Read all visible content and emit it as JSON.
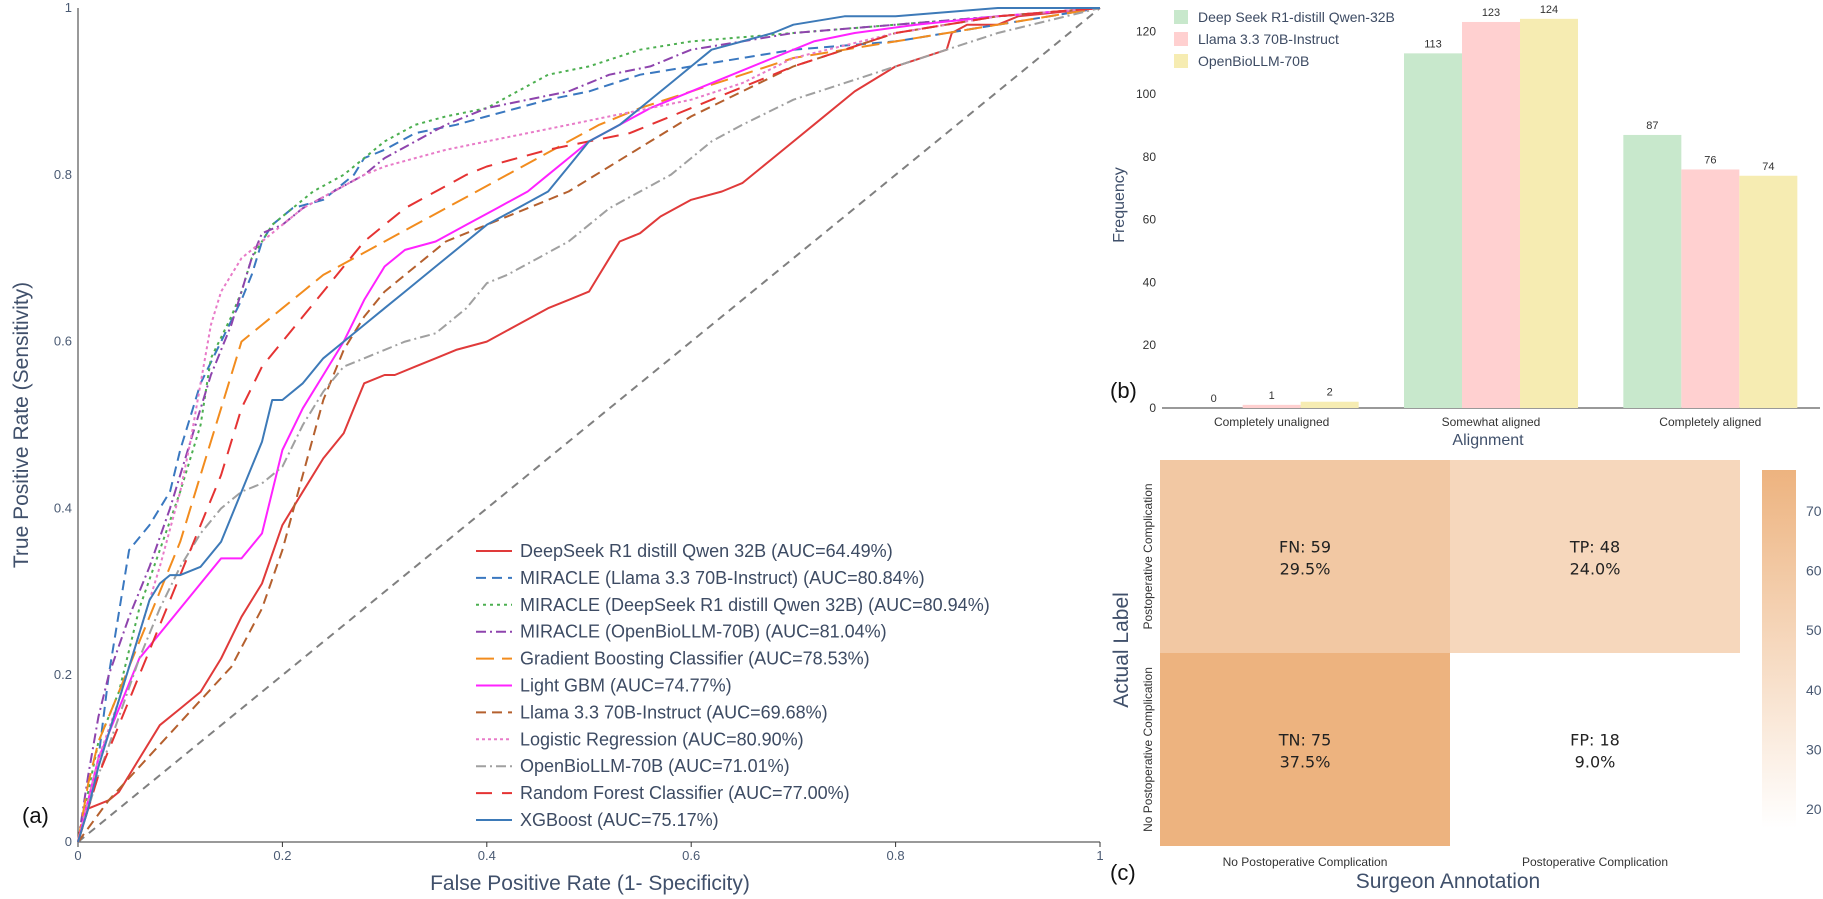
{
  "panels": {
    "a": "(a)",
    "b": "(b)",
    "c": "(c)"
  },
  "chart_data": [
    {
      "type": "line",
      "title": "",
      "xlabel": "False Positive Rate (1- Specificity)",
      "ylabel": "True Positive Rate (Sensitivity)",
      "xlim": [
        0,
        1
      ],
      "ylim": [
        0,
        1
      ],
      "xticks": [
        "0",
        "0.2",
        "0.4",
        "0.6",
        "0.8",
        "1"
      ],
      "yticks": [
        "0",
        "0.2",
        "0.4",
        "0.6",
        "0.8",
        "1"
      ],
      "legend_position": "bottom-right",
      "diagonal": {
        "x": [
          0,
          1
        ],
        "y": [
          0,
          1
        ],
        "color": "#808080",
        "dash": "8,6"
      },
      "series": [
        {
          "name": "DeepSeek R1 distill Qwen 32B (AUC=64.49%)",
          "color": "#e03a3a",
          "dash": "",
          "x": [
            0,
            0.01,
            0.03,
            0.04,
            0.06,
            0.08,
            0.1,
            0.12,
            0.14,
            0.16,
            0.18,
            0.2,
            0.22,
            0.24,
            0.26,
            0.27,
            0.28,
            0.3,
            0.31,
            0.33,
            0.35,
            0.37,
            0.4,
            0.43,
            0.46,
            0.48,
            0.5,
            0.51,
            0.52,
            0.53,
            0.55,
            0.56,
            0.57,
            0.6,
            0.63,
            0.65,
            0.68,
            0.72,
            0.76,
            0.8,
            0.85,
            0.855,
            0.87,
            0.9,
            0.92,
            1
          ],
          "y": [
            0,
            0.04,
            0.05,
            0.06,
            0.1,
            0.14,
            0.16,
            0.18,
            0.22,
            0.27,
            0.31,
            0.38,
            0.42,
            0.46,
            0.49,
            0.52,
            0.55,
            0.56,
            0.56,
            0.57,
            0.58,
            0.59,
            0.6,
            0.62,
            0.64,
            0.65,
            0.66,
            0.68,
            0.7,
            0.72,
            0.73,
            0.74,
            0.75,
            0.77,
            0.78,
            0.79,
            0.82,
            0.86,
            0.9,
            0.93,
            0.95,
            0.97,
            0.98,
            0.98,
            0.99,
            1
          ]
        },
        {
          "name": "MIRACLE (Llama 3.3 70B-Instruct) (AUC=80.84%)",
          "color": "#3a78c0",
          "dash": "10,6",
          "x": [
            0,
            0.01,
            0.02,
            0.03,
            0.05,
            0.07,
            0.09,
            0.1,
            0.12,
            0.14,
            0.16,
            0.17,
            0.18,
            0.19,
            0.2,
            0.21,
            0.24,
            0.27,
            0.28,
            0.3,
            0.33,
            0.37,
            0.4,
            0.43,
            0.46,
            0.5,
            0.55,
            0.6,
            0.65,
            0.7,
            0.8,
            0.9,
            1
          ],
          "y": [
            0,
            0.05,
            0.1,
            0.2,
            0.35,
            0.38,
            0.42,
            0.47,
            0.55,
            0.6,
            0.65,
            0.68,
            0.72,
            0.74,
            0.75,
            0.76,
            0.77,
            0.8,
            0.82,
            0.83,
            0.85,
            0.86,
            0.87,
            0.88,
            0.89,
            0.9,
            0.92,
            0.93,
            0.94,
            0.95,
            0.96,
            0.98,
            1
          ]
        },
        {
          "name": "MIRACLE (DeepSeek R1 distill Qwen 32B) (AUC=80.94%)",
          "color": "#4caf50",
          "dash": "3,4",
          "x": [
            0,
            0.01,
            0.02,
            0.04,
            0.06,
            0.08,
            0.1,
            0.12,
            0.13,
            0.15,
            0.16,
            0.17,
            0.18,
            0.19,
            0.2,
            0.21,
            0.23,
            0.26,
            0.28,
            0.3,
            0.33,
            0.36,
            0.4,
            0.43,
            0.46,
            0.5,
            0.55,
            0.6,
            0.7,
            0.8,
            0.9,
            1
          ],
          "y": [
            0,
            0.06,
            0.12,
            0.18,
            0.28,
            0.35,
            0.42,
            0.5,
            0.58,
            0.63,
            0.66,
            0.7,
            0.72,
            0.74,
            0.75,
            0.76,
            0.78,
            0.8,
            0.82,
            0.84,
            0.86,
            0.87,
            0.88,
            0.9,
            0.92,
            0.93,
            0.95,
            0.96,
            0.97,
            0.98,
            0.99,
            1
          ]
        },
        {
          "name": "MIRACLE (OpenBioLLM-70B) (AUC=81.04%)",
          "color": "#8e44ad",
          "dash": "10,4,2,4",
          "x": [
            0,
            0.01,
            0.02,
            0.03,
            0.05,
            0.07,
            0.09,
            0.11,
            0.13,
            0.15,
            0.16,
            0.17,
            0.18,
            0.2,
            0.22,
            0.25,
            0.28,
            0.3,
            0.33,
            0.36,
            0.4,
            0.44,
            0.48,
            0.52,
            0.56,
            0.6,
            0.65,
            0.7,
            0.8,
            0.9,
            1
          ],
          "y": [
            0,
            0.08,
            0.15,
            0.2,
            0.27,
            0.33,
            0.4,
            0.48,
            0.56,
            0.62,
            0.66,
            0.7,
            0.73,
            0.74,
            0.76,
            0.78,
            0.8,
            0.82,
            0.84,
            0.86,
            0.88,
            0.89,
            0.9,
            0.92,
            0.93,
            0.95,
            0.96,
            0.97,
            0.98,
            0.99,
            1
          ]
        },
        {
          "name": "Gradient Boosting Classifier (AUC=78.53%)",
          "color": "#f28c1e",
          "dash": "18,8",
          "x": [
            0,
            0.01,
            0.02,
            0.04,
            0.06,
            0.08,
            0.1,
            0.12,
            0.14,
            0.16,
            0.18,
            0.2,
            0.22,
            0.24,
            0.27,
            0.3,
            0.33,
            0.36,
            0.39,
            0.42,
            0.45,
            0.48,
            0.51,
            0.55,
            0.6,
            0.65,
            0.7,
            0.8,
            0.9,
            1
          ],
          "y": [
            0,
            0.07,
            0.12,
            0.18,
            0.24,
            0.3,
            0.36,
            0.44,
            0.52,
            0.6,
            0.62,
            0.64,
            0.66,
            0.68,
            0.7,
            0.72,
            0.74,
            0.76,
            0.78,
            0.8,
            0.82,
            0.84,
            0.86,
            0.88,
            0.9,
            0.92,
            0.94,
            0.96,
            0.98,
            1
          ]
        },
        {
          "name": "Light GBM (AUC=74.77%)",
          "color": "#ff22ff",
          "dash": "",
          "x": [
            0,
            0.01,
            0.02,
            0.04,
            0.06,
            0.08,
            0.1,
            0.12,
            0.14,
            0.16,
            0.18,
            0.19,
            0.2,
            0.22,
            0.24,
            0.26,
            0.28,
            0.3,
            0.32,
            0.35,
            0.38,
            0.41,
            0.44,
            0.46,
            0.48,
            0.5,
            0.53,
            0.56,
            0.6,
            0.64,
            0.68,
            0.72,
            0.76,
            0.82,
            0.9,
            1
          ],
          "y": [
            0,
            0.05,
            0.1,
            0.16,
            0.22,
            0.25,
            0.28,
            0.31,
            0.34,
            0.34,
            0.37,
            0.42,
            0.47,
            0.52,
            0.56,
            0.6,
            0.65,
            0.69,
            0.71,
            0.72,
            0.74,
            0.76,
            0.78,
            0.8,
            0.82,
            0.84,
            0.86,
            0.88,
            0.9,
            0.92,
            0.94,
            0.96,
            0.97,
            0.98,
            0.99,
            1
          ]
        },
        {
          "name": "Llama 3.3 70B-Instruct (AUC=69.68%)",
          "color": "#b5602e",
          "dash": "10,6",
          "x": [
            0,
            0.03,
            0.06,
            0.09,
            0.12,
            0.15,
            0.18,
            0.2,
            0.22,
            0.24,
            0.26,
            0.28,
            0.3,
            0.33,
            0.36,
            0.4,
            0.44,
            0.48,
            0.52,
            0.56,
            0.6,
            0.65,
            0.7,
            0.75,
            0.8,
            0.9,
            1
          ],
          "y": [
            0,
            0.05,
            0.09,
            0.13,
            0.17,
            0.21,
            0.28,
            0.35,
            0.44,
            0.53,
            0.59,
            0.63,
            0.66,
            0.69,
            0.72,
            0.74,
            0.76,
            0.78,
            0.81,
            0.84,
            0.87,
            0.9,
            0.93,
            0.95,
            0.97,
            0.99,
            1
          ]
        },
        {
          "name": "Logistic Regression (AUC=80.90%)",
          "color": "#e87bc8",
          "dash": "3,3",
          "x": [
            0,
            0.01,
            0.02,
            0.04,
            0.06,
            0.08,
            0.1,
            0.11,
            0.12,
            0.13,
            0.14,
            0.15,
            0.16,
            0.18,
            0.2,
            0.22,
            0.25,
            0.28,
            0.3,
            0.33,
            0.36,
            0.4,
            0.44,
            0.48,
            0.52,
            0.56,
            0.6,
            0.65,
            0.7,
            0.8,
            0.9,
            1
          ],
          "y": [
            0,
            0.05,
            0.1,
            0.17,
            0.25,
            0.33,
            0.42,
            0.48,
            0.55,
            0.62,
            0.66,
            0.68,
            0.7,
            0.72,
            0.74,
            0.76,
            0.78,
            0.8,
            0.81,
            0.82,
            0.83,
            0.84,
            0.85,
            0.86,
            0.87,
            0.88,
            0.89,
            0.91,
            0.94,
            0.97,
            0.99,
            1
          ]
        },
        {
          "name": "OpenBioLLM-70B (AUC=71.01%)",
          "color": "#a0a0a0",
          "dash": "10,4,2,4",
          "x": [
            0,
            0.02,
            0.04,
            0.06,
            0.08,
            0.1,
            0.12,
            0.14,
            0.16,
            0.18,
            0.2,
            0.22,
            0.24,
            0.26,
            0.28,
            0.3,
            0.32,
            0.35,
            0.38,
            0.4,
            0.42,
            0.45,
            0.48,
            0.5,
            0.52,
            0.55,
            0.58,
            0.6,
            0.62,
            0.65,
            0.7,
            0.75,
            0.8,
            0.85,
            0.9,
            1
          ],
          "y": [
            0,
            0.08,
            0.15,
            0.22,
            0.28,
            0.33,
            0.37,
            0.4,
            0.42,
            0.43,
            0.45,
            0.5,
            0.54,
            0.57,
            0.58,
            0.59,
            0.6,
            0.61,
            0.64,
            0.67,
            0.68,
            0.7,
            0.72,
            0.74,
            0.76,
            0.78,
            0.8,
            0.82,
            0.84,
            0.86,
            0.89,
            0.91,
            0.93,
            0.95,
            0.97,
            1
          ]
        },
        {
          "name": "Random Forest Classifier (AUC=77.00%)",
          "color": "#e53333",
          "dash": "16,10",
          "x": [
            0,
            0.01,
            0.02,
            0.04,
            0.06,
            0.08,
            0.1,
            0.12,
            0.14,
            0.16,
            0.18,
            0.2,
            0.22,
            0.24,
            0.26,
            0.28,
            0.3,
            0.32,
            0.35,
            0.38,
            0.4,
            0.43,
            0.46,
            0.5,
            0.54,
            0.58,
            0.62,
            0.66,
            0.7,
            0.75,
            0.8,
            0.9,
            1
          ],
          "y": [
            0,
            0.04,
            0.08,
            0.14,
            0.2,
            0.26,
            0.32,
            0.38,
            0.44,
            0.52,
            0.57,
            0.6,
            0.63,
            0.66,
            0.69,
            0.72,
            0.74,
            0.76,
            0.78,
            0.8,
            0.81,
            0.82,
            0.83,
            0.84,
            0.85,
            0.87,
            0.89,
            0.91,
            0.93,
            0.95,
            0.97,
            0.99,
            1
          ]
        },
        {
          "name": "XGBoost (AUC=75.17%)",
          "color": "#3d7ab8",
          "dash": "",
          "x": [
            0,
            0.01,
            0.02,
            0.03,
            0.04,
            0.05,
            0.06,
            0.07,
            0.08,
            0.09,
            0.1,
            0.12,
            0.14,
            0.16,
            0.18,
            0.19,
            0.2,
            0.22,
            0.24,
            0.26,
            0.28,
            0.3,
            0.32,
            0.35,
            0.38,
            0.4,
            0.43,
            0.46,
            0.48,
            0.5,
            0.53,
            0.55,
            0.58,
            0.6,
            0.62,
            0.65,
            0.68,
            0.7,
            0.75,
            0.8,
            0.9,
            1
          ],
          "y": [
            0,
            0.04,
            0.09,
            0.13,
            0.17,
            0.21,
            0.25,
            0.29,
            0.31,
            0.32,
            0.32,
            0.33,
            0.36,
            0.42,
            0.48,
            0.53,
            0.53,
            0.55,
            0.58,
            0.6,
            0.62,
            0.64,
            0.66,
            0.69,
            0.72,
            0.74,
            0.76,
            0.78,
            0.81,
            0.84,
            0.86,
            0.88,
            0.91,
            0.93,
            0.95,
            0.96,
            0.97,
            0.98,
            0.99,
            0.99,
            1,
            1
          ]
        }
      ]
    },
    {
      "type": "bar",
      "title": "",
      "xlabel": "Alignment",
      "ylabel": "Frequency",
      "categories": [
        "Completely unaligned",
        "Somewhat aligned",
        "Completely aligned"
      ],
      "ylim": [
        0,
        130
      ],
      "yticks": [
        "0",
        "20",
        "40",
        "60",
        "80",
        "100",
        "120"
      ],
      "legend_position": "top-left",
      "series": [
        {
          "name": "Deep Seek R1-distill Qwen-32B",
          "color": "#c8e8cc",
          "values": [
            0,
            113,
            87
          ]
        },
        {
          "name": "Llama 3.3 70B-Instruct",
          "color": "#ffd0d0",
          "values": [
            1,
            123,
            76
          ]
        },
        {
          "name": "OpenBioLLM-70B",
          "color": "#f6ecb2",
          "values": [
            2,
            124,
            74
          ]
        }
      ]
    },
    {
      "type": "heatmap",
      "title": "",
      "xlabel": "Surgeon Annotation",
      "ylabel": "Actual Label",
      "x_categories": [
        "No Postoperative Complication",
        "Postoperative Complication"
      ],
      "y_categories": [
        "Postoperative Complication",
        "No Postoperative Complication"
      ],
      "cells": [
        {
          "row": 0,
          "col": 0,
          "label": "FN: 59",
          "pct": "29.5%",
          "value": 59
        },
        {
          "row": 0,
          "col": 1,
          "label": "TP: 48",
          "pct": "24.0%",
          "value": 48
        },
        {
          "row": 1,
          "col": 0,
          "label": "TN: 75",
          "pct": "37.5%",
          "value": 75
        },
        {
          "row": 1,
          "col": 1,
          "label": "FP: 18",
          "pct": "9.0%",
          "value": 18
        }
      ],
      "colorbar": {
        "range": [
          18,
          75
        ],
        "ticks": [
          "20",
          "30",
          "40",
          "50",
          "60",
          "70"
        ]
      }
    }
  ]
}
